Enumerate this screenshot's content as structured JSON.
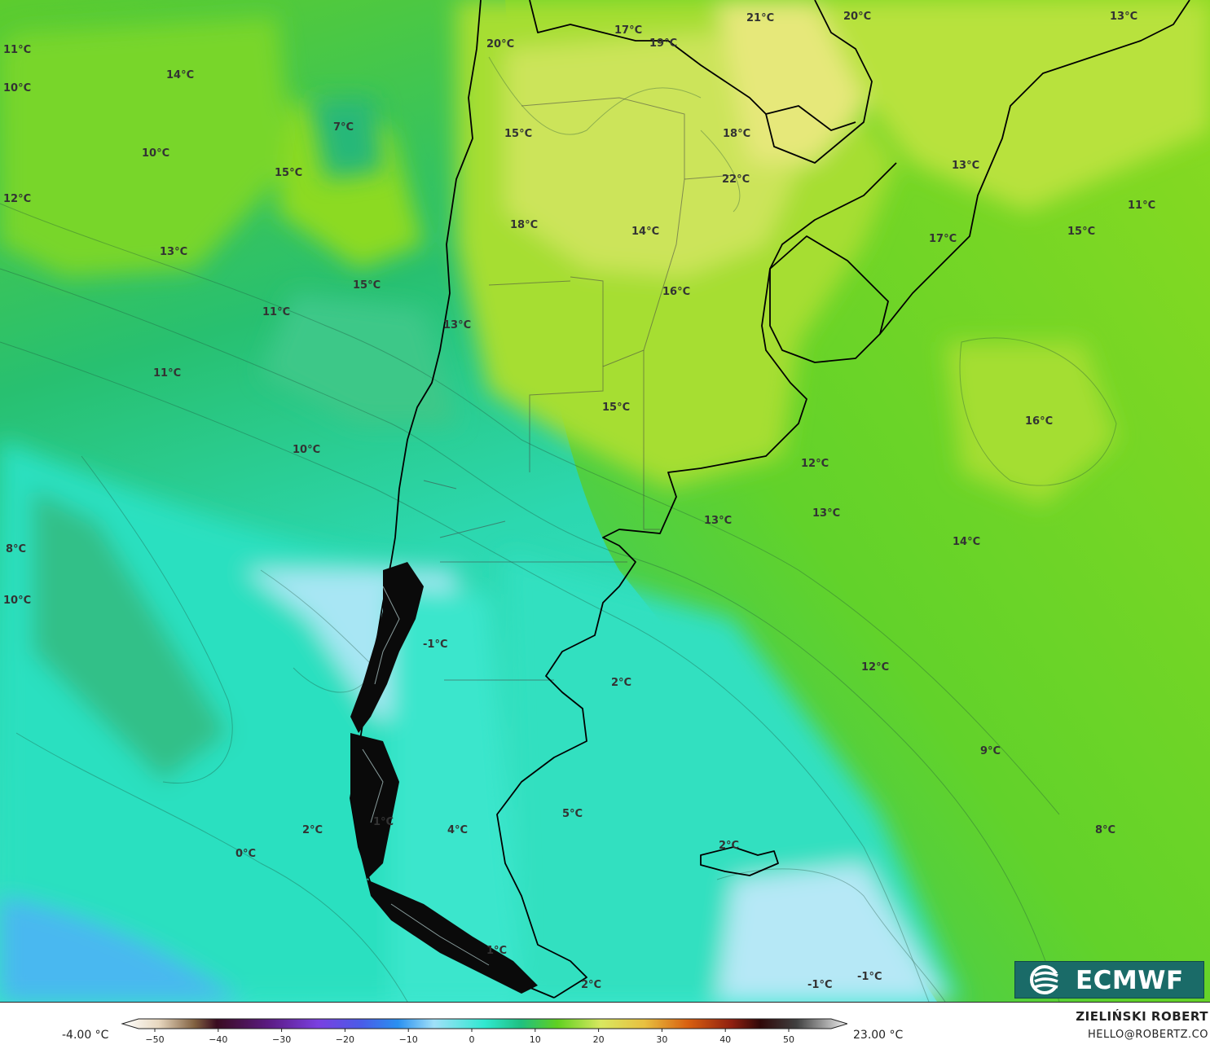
{
  "map": {
    "background_colors": {
      "deep_cold": "#46b2f2",
      "very_cold": "#b4e4f8",
      "cold": "#3ce8d0",
      "cool": "#20cc8c",
      "mild": "#3cc83c",
      "warm": "#86dc16",
      "warmer": "#c4e44a",
      "warmest": "#e8e878"
    },
    "labels": [
      {
        "text": "11°C"
      },
      {
        "text": "10°C"
      },
      {
        "text": "14°C"
      },
      {
        "text": "7°C"
      },
      {
        "text": "10°C"
      },
      {
        "text": "15°C"
      },
      {
        "text": "12°C"
      },
      {
        "text": "13°C"
      },
      {
        "text": "15°C"
      },
      {
        "text": "11°C"
      },
      {
        "text": "11°C"
      },
      {
        "text": "10°C"
      },
      {
        "text": "8°C"
      },
      {
        "text": "10°C"
      },
      {
        "text": "20°C"
      },
      {
        "text": "17°C"
      },
      {
        "text": "19°C"
      },
      {
        "text": "21°C"
      },
      {
        "text": "20°C"
      },
      {
        "text": "13°C"
      },
      {
        "text": "15°C"
      },
      {
        "text": "18°C"
      },
      {
        "text": "22°C"
      },
      {
        "text": "13°C"
      },
      {
        "text": "11°C"
      },
      {
        "text": "18°C"
      },
      {
        "text": "14°C"
      },
      {
        "text": "17°C"
      },
      {
        "text": "15°C"
      },
      {
        "text": "16°C"
      },
      {
        "text": "13°C"
      },
      {
        "text": "15°C"
      },
      {
        "text": "16°C"
      },
      {
        "text": "12°C"
      },
      {
        "text": "13°C"
      },
      {
        "text": "13°C"
      },
      {
        "text": "14°C"
      },
      {
        "text": "-1°C"
      },
      {
        "text": "2°C"
      },
      {
        "text": "12°C"
      },
      {
        "text": "9°C"
      },
      {
        "text": "5°C"
      },
      {
        "text": "4°C"
      },
      {
        "text": "1°C"
      },
      {
        "text": "2°C"
      },
      {
        "text": "0°C"
      },
      {
        "text": "2°C"
      },
      {
        "text": "8°C"
      },
      {
        "text": "1°C"
      },
      {
        "text": "2°C"
      },
      {
        "text": "-1°C"
      },
      {
        "text": "-1°C"
      }
    ]
  },
  "legend": {
    "min_label": "-4.00 °C",
    "max_label": "23.00 °C",
    "ticks": [
      "−50",
      "−40",
      "−30",
      "−20",
      "−10",
      "0",
      "10",
      "20",
      "30",
      "40",
      "50"
    ]
  },
  "credits": {
    "author": "ZIELIŃSKI ROBERT",
    "email": "HELLO@ROBERTZ.CO",
    "logo_text": "ECMWF"
  }
}
